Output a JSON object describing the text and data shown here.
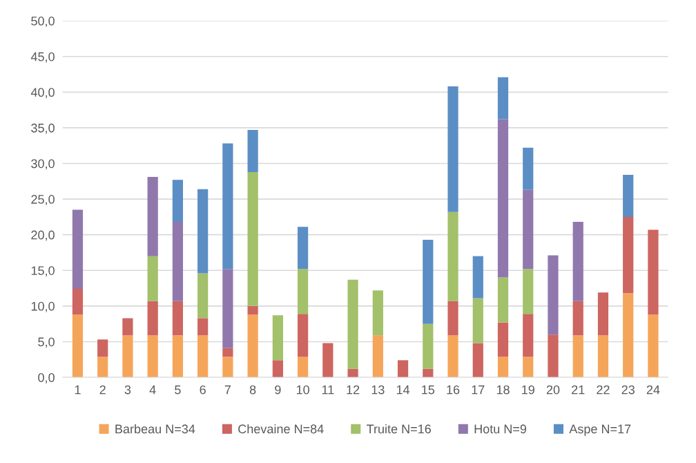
{
  "chart_data": {
    "type": "bar",
    "stacked": true,
    "categories": [
      "1",
      "2",
      "3",
      "4",
      "5",
      "6",
      "7",
      "8",
      "9",
      "10",
      "11",
      "12",
      "13",
      "14",
      "15",
      "16",
      "17",
      "18",
      "19",
      "20",
      "21",
      "22",
      "23",
      "24"
    ],
    "series": [
      {
        "name": "Barbeau N=34",
        "color": "#f5a55a",
        "values": [
          8.8,
          2.9,
          5.9,
          5.9,
          5.9,
          5.9,
          2.9,
          8.8,
          null,
          2.9,
          null,
          null,
          5.9,
          null,
          null,
          5.9,
          null,
          2.9,
          2.9,
          null,
          5.9,
          5.9,
          11.8,
          8.8
        ]
      },
      {
        "name": "Chevaine N=84",
        "color": "#cd6561",
        "values": [
          3.6,
          2.4,
          2.4,
          4.8,
          4.8,
          2.4,
          1.2,
          1.2,
          2.4,
          6.0,
          4.8,
          1.2,
          null,
          2.4,
          1.2,
          4.8,
          4.8,
          4.8,
          6.0,
          6.0,
          4.8,
          6.0,
          10.7,
          11.9
        ]
      },
      {
        "name": "Truite N=16",
        "color": "#a3c06a",
        "values": [
          null,
          null,
          null,
          6.3,
          null,
          6.3,
          null,
          18.8,
          6.3,
          6.3,
          null,
          12.5,
          6.3,
          null,
          6.3,
          12.5,
          6.3,
          6.3,
          6.3,
          null,
          null,
          null,
          null,
          null
        ]
      },
      {
        "name": "Hotu N=9",
        "color": "#9078ad",
        "values": [
          11.1,
          null,
          null,
          11.1,
          11.1,
          null,
          11.1,
          null,
          null,
          null,
          null,
          null,
          null,
          null,
          null,
          null,
          null,
          22.2,
          11.1,
          11.1,
          11.1,
          null,
          null,
          null
        ]
      },
      {
        "name": "Aspe N=17",
        "color": "#5b8ec4",
        "values": [
          null,
          null,
          null,
          null,
          5.9,
          11.8,
          17.6,
          5.9,
          null,
          5.9,
          null,
          null,
          null,
          null,
          11.8,
          17.6,
          5.9,
          5.9,
          5.9,
          null,
          null,
          null,
          5.9,
          null
        ]
      }
    ],
    "ylim": [
      0,
      50
    ],
    "yticks": [
      {
        "value": 0,
        "label": "0,0"
      },
      {
        "value": 5,
        "label": "5,0"
      },
      {
        "value": 10,
        "label": "10,0"
      },
      {
        "value": 15,
        "label": "15,0"
      },
      {
        "value": 20,
        "label": "20,0"
      },
      {
        "value": 25,
        "label": "25,0"
      },
      {
        "value": 30,
        "label": "30,0"
      },
      {
        "value": 35,
        "label": "35,0"
      },
      {
        "value": 40,
        "label": "40,0"
      },
      {
        "value": 45,
        "label": "45,0"
      },
      {
        "value": 50,
        "label": "50,0"
      }
    ],
    "grid": "y",
    "legend": "bottom"
  }
}
